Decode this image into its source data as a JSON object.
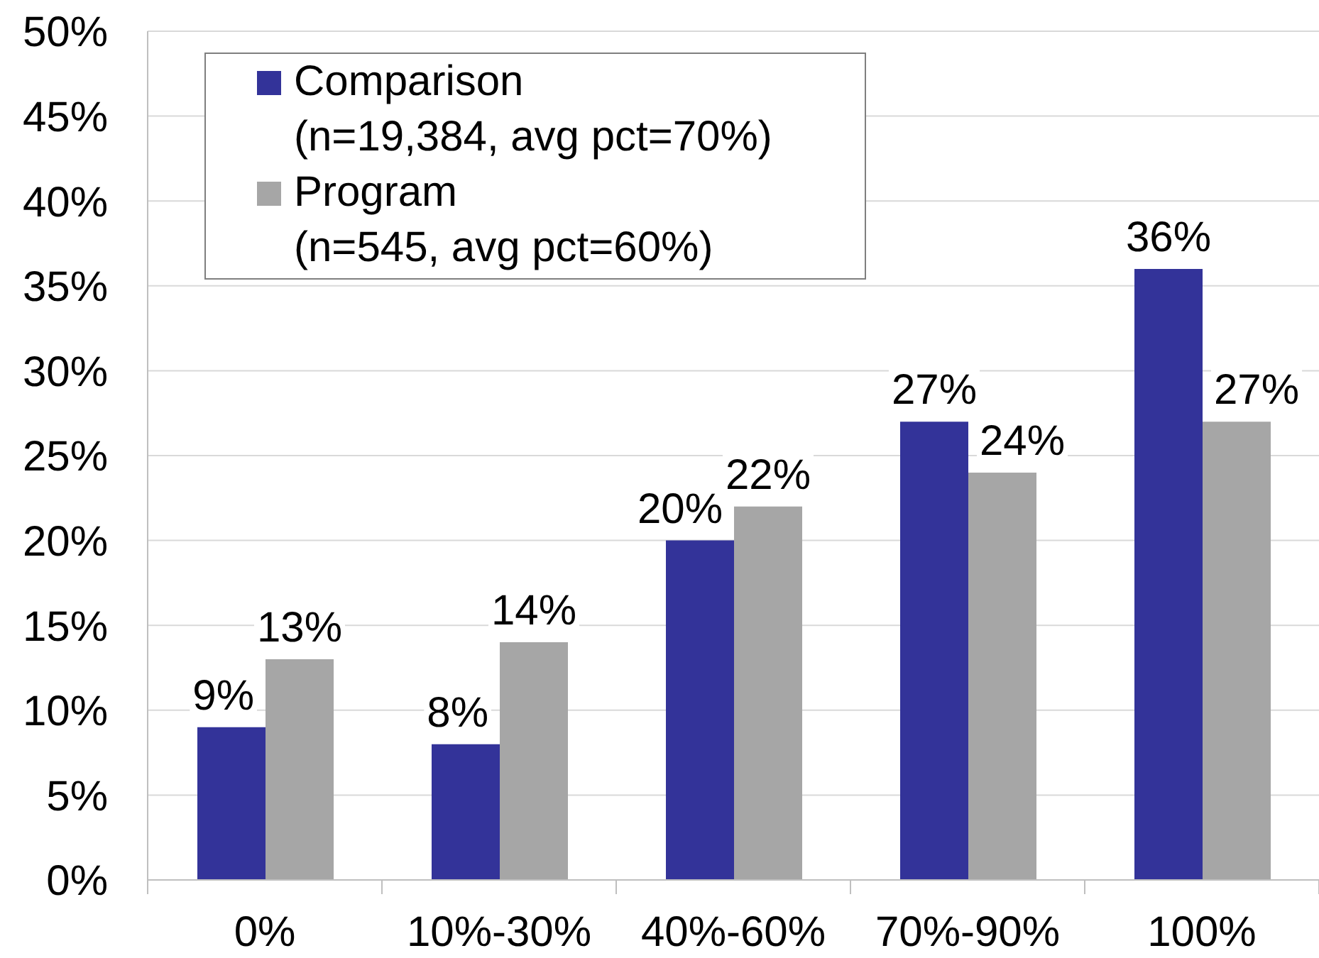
{
  "chart_data": {
    "type": "bar",
    "categories": [
      "0%",
      "10%-30%",
      "40%-60%",
      "70%-90%",
      "100%"
    ],
    "series": [
      {
        "name": "Comparison\n(n=19,384, avg pct=70%)",
        "color": "#333399",
        "values": [
          9,
          8,
          20,
          27,
          36
        ],
        "value_labels": [
          "9%",
          "8%",
          "20%",
          "27%",
          "36%"
        ]
      },
      {
        "name": "Program\n(n=545, avg pct=60%)",
        "color": "#a6a6a6",
        "values": [
          13,
          14,
          22,
          24,
          27
        ],
        "value_labels": [
          "13%",
          "14%",
          "22%",
          "24%",
          "27%"
        ]
      }
    ],
    "ylim": [
      0,
      50
    ],
    "yticks": [
      {
        "value": 0,
        "label": "0%"
      },
      {
        "value": 5,
        "label": "5%"
      },
      {
        "value": 10,
        "label": "10%"
      },
      {
        "value": 15,
        "label": "15%"
      },
      {
        "value": 20,
        "label": "20%"
      },
      {
        "value": 25,
        "label": "25%"
      },
      {
        "value": 30,
        "label": "30%"
      },
      {
        "value": 35,
        "label": "35%"
      },
      {
        "value": 40,
        "label": "40%"
      },
      {
        "value": 45,
        "label": "45%"
      },
      {
        "value": 50,
        "label": "50%"
      }
    ],
    "grid": "y",
    "legend": "top left"
  }
}
